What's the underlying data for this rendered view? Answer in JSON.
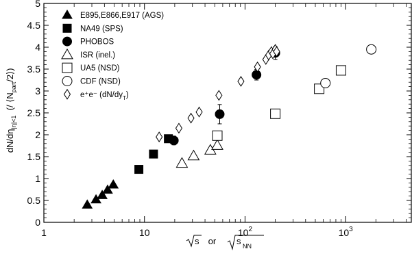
{
  "chart_data": {
    "type": "scatter",
    "x_scale": "log",
    "xlim": [
      1,
      4500
    ],
    "ylim": [
      0,
      5
    ],
    "y_ticks": [
      0,
      0.5,
      1,
      1.5,
      2,
      2.5,
      3,
      3.5,
      4,
      4.5,
      5
    ],
    "y_tick_labels": [
      "0",
      "0.5",
      "1",
      "1.5",
      "2",
      "2.5",
      "3",
      "3.5",
      "4",
      "4.5",
      "5"
    ],
    "x_major_ticks": [
      1,
      10,
      100,
      1000
    ],
    "x_tick_labels": [
      {
        "base": "1",
        "exp": ""
      },
      {
        "base": "10",
        "exp": ""
      },
      {
        "base": "10",
        "exp": "2"
      },
      {
        "base": "10",
        "exp": "3"
      }
    ],
    "xlabel": {
      "part1": "s",
      "mid": " or ",
      "part2": "s",
      "sub": "NN"
    },
    "ylabel": {
      "main": "dN/dη",
      "sub1": "|η|<1",
      "open": "  (/ ⟨N",
      "sub2": "part",
      "close": "/2⟩)"
    },
    "grid": false,
    "legend_placement": "top-left",
    "series": [
      {
        "name": "E895,E866,E917 (AGS)",
        "marker": "triangle-filled",
        "points": [
          {
            "x": 2.7,
            "y": 0.4
          },
          {
            "x": 3.3,
            "y": 0.52
          },
          {
            "x": 3.8,
            "y": 0.62
          },
          {
            "x": 4.3,
            "y": 0.74
          },
          {
            "x": 4.9,
            "y": 0.86
          }
        ]
      },
      {
        "name": "NA49 (SPS)",
        "marker": "square-filled",
        "points": [
          {
            "x": 8.8,
            "y": 1.21
          },
          {
            "x": 12.3,
            "y": 1.56
          },
          {
            "x": 17.3,
            "y": 1.91
          }
        ]
      },
      {
        "name": "PHOBOS",
        "marker": "circle-filled",
        "points": [
          {
            "x": 19.6,
            "y": 1.87,
            "err": 0.1
          },
          {
            "x": 56,
            "y": 2.47,
            "err": 0.22
          },
          {
            "x": 130,
            "y": 3.37,
            "err": 0.12
          },
          {
            "x": 200,
            "y": 3.87,
            "err": 0.15
          }
        ]
      },
      {
        "name": "ISR (inel.)",
        "marker": "triangle-open",
        "points": [
          {
            "x": 23.6,
            "y": 1.35
          },
          {
            "x": 30.8,
            "y": 1.52
          },
          {
            "x": 45.2,
            "y": 1.65
          },
          {
            "x": 53,
            "y": 1.76
          }
        ]
      },
      {
        "name": "UA5 (NSD)",
        "marker": "square-open",
        "points": [
          {
            "x": 53,
            "y": 1.98
          },
          {
            "x": 200,
            "y": 2.48
          },
          {
            "x": 546,
            "y": 3.05
          },
          {
            "x": 900,
            "y": 3.47
          }
        ]
      },
      {
        "name": "CDF (NSD)",
        "marker": "circle-open",
        "points": [
          {
            "x": 630,
            "y": 3.18
          },
          {
            "x": 1800,
            "y": 3.95,
            "err": 0.1
          }
        ]
      },
      {
        "name": "e⁺e⁻ (dN/dy",
        "name_sub": "T",
        "name_close": ")",
        "marker": "diamond-open",
        "points": [
          {
            "x": 14,
            "y": 1.95
          },
          {
            "x": 22,
            "y": 2.15
          },
          {
            "x": 29,
            "y": 2.38
          },
          {
            "x": 35,
            "y": 2.52
          },
          {
            "x": 55,
            "y": 2.9
          },
          {
            "x": 91,
            "y": 3.22
          },
          {
            "x": 133,
            "y": 3.55
          },
          {
            "x": 161,
            "y": 3.72
          },
          {
            "x": 172,
            "y": 3.82
          },
          {
            "x": 183,
            "y": 3.9
          },
          {
            "x": 189,
            "y": 3.85
          },
          {
            "x": 200,
            "y": 3.95
          },
          {
            "x": 206,
            "y": 3.9
          }
        ]
      }
    ]
  }
}
